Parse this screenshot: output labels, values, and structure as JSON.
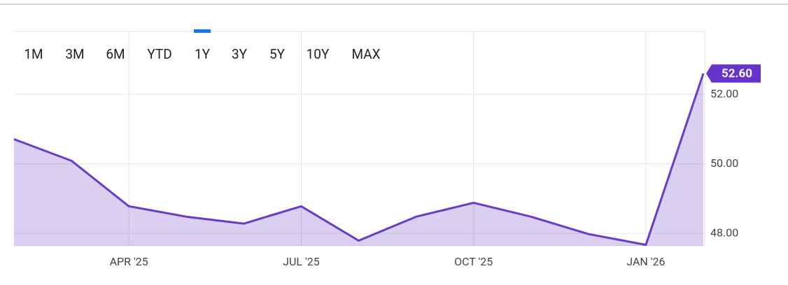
{
  "range_selector": {
    "options": [
      "1M",
      "3M",
      "6M",
      "YTD",
      "1Y",
      "3Y",
      "5Y",
      "10Y",
      "MAX"
    ],
    "active": "1Y",
    "disabled": [
      "10Y",
      "MAX"
    ]
  },
  "chart_data": {
    "type": "area",
    "categories": [
      null,
      null,
      "APR '25",
      null,
      null,
      "JUL '25",
      null,
      null,
      "OCT '25",
      null,
      null,
      "JAN '26",
      null
    ],
    "series": [
      {
        "color": "#6a3bc9",
        "values": [
          50.71,
          50.09,
          48.78,
          48.48,
          48.28,
          48.78,
          47.79,
          48.48,
          48.88,
          48.48,
          47.98,
          47.67,
          52.6
        ],
        "value_labels": [
          null,
          null,
          null,
          null,
          null,
          null,
          null,
          null,
          null,
          null,
          null,
          null,
          "52.60"
        ]
      }
    ],
    "ylim": [
      47.64,
      53.81
    ],
    "yticks": [
      {
        "value": 48,
        "label": "48.00"
      },
      {
        "value": 50,
        "label": "50.00"
      },
      {
        "value": 52,
        "label": "52.00"
      }
    ],
    "grid": true
  }
}
